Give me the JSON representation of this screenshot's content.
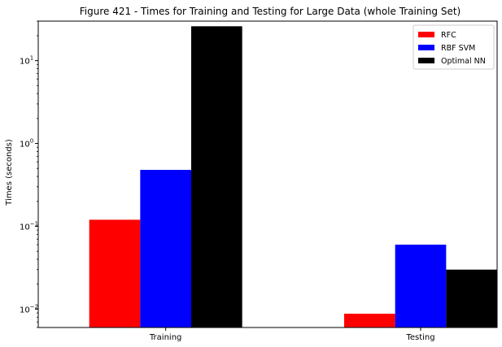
{
  "chart_data": {
    "type": "bar",
    "title": "Figure 421 - Times for Training and Testing for Large Data (whole Training Set)",
    "xlabel": "",
    "ylabel": "Times (seconds)",
    "yscale": "log",
    "ylim": [
      0.006,
      30
    ],
    "yticks": [
      {
        "base": "10",
        "exp": "−2",
        "value": 0.01
      },
      {
        "base": "10",
        "exp": "−1",
        "value": 0.1
      },
      {
        "base": "10",
        "exp": "0",
        "value": 1
      },
      {
        "base": "10",
        "exp": "1",
        "value": 10
      }
    ],
    "categories": [
      "Training",
      "Testing"
    ],
    "series": [
      {
        "name": "RFC",
        "color": "#ff0000",
        "values": [
          0.12,
          0.0088
        ]
      },
      {
        "name": "RBF SVM",
        "color": "#0000ff",
        "values": [
          0.48,
          0.06
        ]
      },
      {
        "name": "Optimal NN",
        "color": "#000000",
        "values": [
          26,
          0.03
        ]
      }
    ],
    "grid": false,
    "legend_position": "top-right"
  }
}
